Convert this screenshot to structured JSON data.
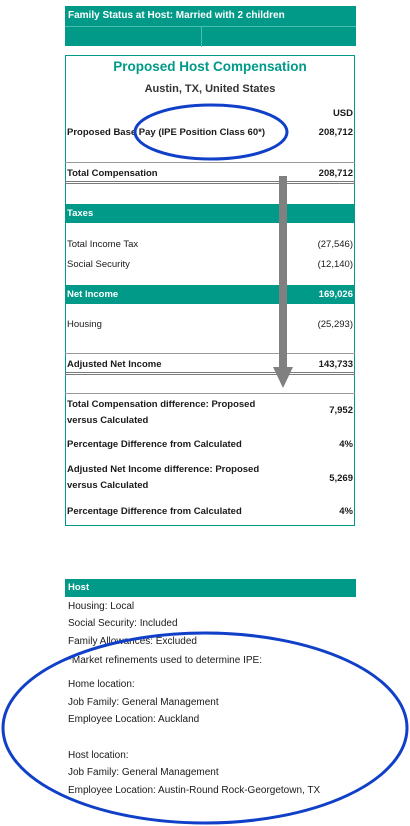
{
  "banner": {
    "family_status": "Family Status at Host: Married with 2 children"
  },
  "header": {
    "title": "Proposed Host Compensation",
    "location": "Austin, TX, United States",
    "currency": "USD"
  },
  "rows": {
    "base_pay": {
      "label": "Proposed Base Pay (IPE Position Class 60*)",
      "value": "208,712"
    },
    "total_comp": {
      "label": "Total Compensation",
      "value": "208,712"
    },
    "taxes_header": "Taxes",
    "income_tax": {
      "label": "Total Income Tax",
      "value": "(27,546)"
    },
    "social_security": {
      "label": "Social Security",
      "value": "(12,140)"
    },
    "net_income": {
      "label": "Net Income",
      "value": "169,026"
    },
    "housing": {
      "label": "Housing",
      "value": "(25,293)"
    },
    "adj_net_income": {
      "label": "Adjusted Net Income",
      "value": "143,733"
    },
    "comp_diff": {
      "label": "Total Compensation difference: Proposed versus Calculated",
      "value": "7,952"
    },
    "pct_diff_1": {
      "label": "Percentage Difference from Calculated",
      "value": "4%"
    },
    "adj_diff": {
      "label": "Adjusted Net Income difference: Proposed versus Calculated",
      "value": "5,269"
    },
    "pct_diff_2": {
      "label": "Percentage Difference from Calculated",
      "value": "4%"
    }
  },
  "host": {
    "header": "Host",
    "lines": [
      "Housing: Local",
      "Social Security: Included",
      "Family Allowances: Excluded",
      "*Market refinements used to determine IPE:",
      "Home location:",
      "Job Family: General Management",
      "Employee Location: Auckland",
      "Host location:",
      "Job Family: General Management",
      "Employee Location: Austin-Round Rock-Georgetown, TX"
    ]
  },
  "colors": {
    "teal": "#019a88",
    "annotation_blue": "#1040c8",
    "arrow_gray": "#808080"
  }
}
